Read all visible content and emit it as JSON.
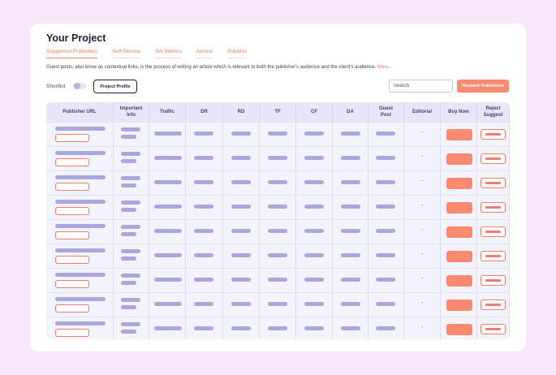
{
  "title": "Your Project",
  "tabs": [
    "Suggested Publishers",
    "Self Service",
    "Set Metrics",
    "Anchor",
    "Blacklist"
  ],
  "active_tab": "Suggested Publishers",
  "description": "Guest posts, also know as contextual links, is the process of writing an article which is relevant to both the publisher's audience and the client's audience.",
  "more_link": "More..",
  "shortlist_label": "Shortlist",
  "shortlist_on": false,
  "project_profile_label": "Project Profile",
  "search_placeholder": "Search",
  "request_publishers_label": "Request Publishers",
  "columns": [
    "Publisher URL",
    "Important\nInfo",
    "Traffic",
    "DR",
    "RD",
    "TF",
    "CF",
    "DA",
    "Guest\nPost",
    "Editorial",
    "Buy Now",
    "Reject\nSuggest"
  ],
  "editorial_value": "-",
  "row_count": 9,
  "colors": {
    "background": "#f9e6fb",
    "accent": "#fb8a71",
    "placeholder_bar": "#aaa7dc",
    "header_bg": "#e6e6f8"
  }
}
